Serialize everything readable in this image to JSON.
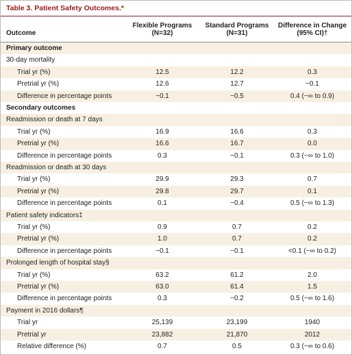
{
  "title": "Table 3. Patient Safety Outcomes.*",
  "table": {
    "header": [
      [
        "Outcome"
      ],
      [
        "Flexible Programs",
        "(N=32)"
      ],
      [
        "Standard Programs",
        "(N=31)"
      ],
      [
        "Difference in Change",
        "(95% CI)†"
      ]
    ],
    "sections": [
      {
        "title": "Primary outcome",
        "groups": [
          {
            "title": "30-day mortality",
            "rows": [
              [
                "Trial yr (%)",
                "12.5",
                "12.2",
                "0.3"
              ],
              [
                "Pretrial yr (%)",
                "12.6",
                "12.7",
                "−0.1"
              ],
              [
                "Difference in percentage points",
                "−0.1",
                "−0.5",
                "0.4 (−∞ to 0.9)"
              ]
            ]
          }
        ]
      },
      {
        "title": "Secondary outcomes",
        "groups": [
          {
            "title": "Readmission or death at 7 days",
            "rows": [
              [
                "Trial yr (%)",
                "16.9",
                "16.6",
                "0.3"
              ],
              [
                "Pretrial yr (%)",
                "16.6",
                "16.7",
                "0.0"
              ],
              [
                "Difference in percentage points",
                "0.3",
                "−0.1",
                "0.3 (−∞ to 1.0)"
              ]
            ]
          },
          {
            "title": "Readmission or death at 30 days",
            "rows": [
              [
                "Trial yr (%)",
                "29.9",
                "29.3",
                "0.7"
              ],
              [
                "Pretrial yr (%)",
                "29.8",
                "29.7",
                "0.1"
              ],
              [
                "Difference in percentage points",
                "0.1",
                "−0.4",
                "0.5 (−∞ to 1.3)"
              ]
            ]
          },
          {
            "title": "Patient safety indicators‡",
            "rows": [
              [
                "Trial yr (%)",
                "0.9",
                "0.7",
                "0.2"
              ],
              [
                "Pretrial yr (%)",
                "1.0",
                "0.7",
                "0.2"
              ],
              [
                "Difference in percentage points",
                "−0.1",
                "−0.1",
                "<0.1 (−∞ to 0.2)"
              ]
            ]
          },
          {
            "title": "Prolonged length of hospital stay§",
            "rows": [
              [
                "Trial yr (%)",
                "63.2",
                "61.2",
                "2.0"
              ],
              [
                "Pretrial yr (%)",
                "63.0",
                "61.4",
                "1.5"
              ],
              [
                "Difference in percentage points",
                "0.3",
                "−0.2",
                "0.5 (−∞ to 1.6)"
              ]
            ]
          },
          {
            "title": "Payment in 2016 dollars¶",
            "rows": [
              [
                "Trial yr",
                "25,139",
                "23,199",
                "1940"
              ],
              [
                "Pretrial yr",
                "23,882",
                "21,870",
                "2012"
              ],
              [
                "Relative difference (%)",
                "0.7",
                "0.5",
                "0.3 (−∞ to 0.6)"
              ]
            ]
          }
        ]
      }
    ]
  }
}
